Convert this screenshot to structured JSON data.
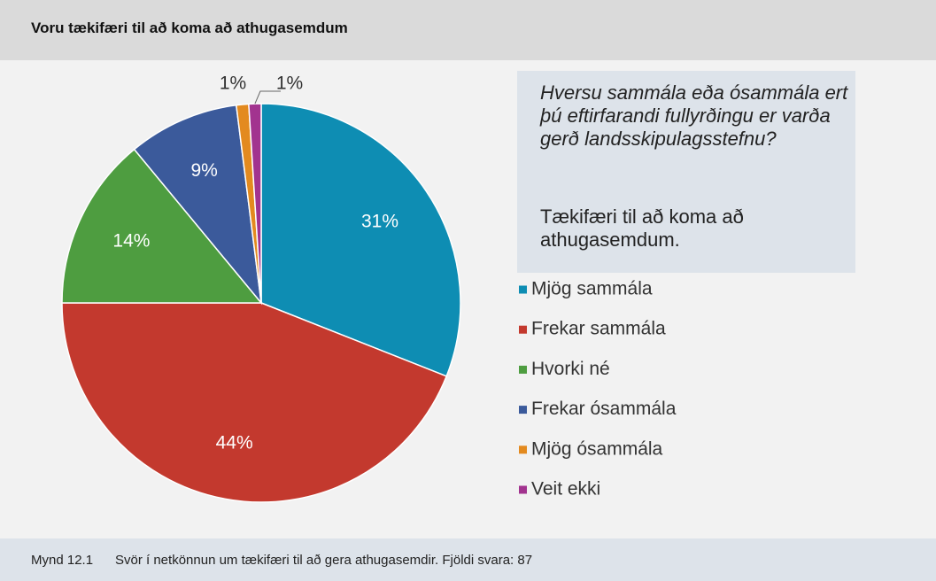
{
  "chart_data": {
    "type": "pie",
    "title": "Voru tækifæri til að koma að athugasemdum",
    "question": "Hversu sammála eða ósammála ert þú eftirfarandi fullyrðingu er varða gerð landsskipulagsstefnu?",
    "statement": "Tækifæri til að koma að athugasemdum.",
    "categories": [
      "Mjög sammála",
      "Frekar sammála",
      "Hvorki né",
      "Frekar ósammála",
      "Mjög ósammála",
      "Veit ekki"
    ],
    "values": [
      31,
      44,
      14,
      9,
      1,
      1
    ],
    "value_labels": [
      "31%",
      "44%",
      "14%",
      "9%",
      "1%",
      "1%"
    ],
    "colors": [
      "#0e8db3",
      "#c3392e",
      "#4e9d40",
      "#3b5a9b",
      "#e38a1f",
      "#a2338f"
    ],
    "legend": "right"
  },
  "caption": {
    "number": "Mynd 12.1",
    "text": "Svör í netkönnun um tækifæri til að gera athugasemdir. Fjöldi svara: 87"
  }
}
